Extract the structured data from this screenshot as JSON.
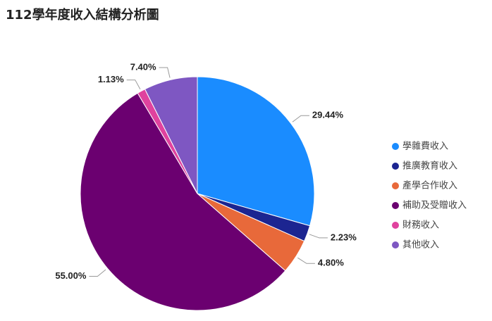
{
  "chart_data": {
    "type": "pie",
    "title": "112學年度收入結構分析圖",
    "categories": [
      "學雜費收入",
      "推廣教育收入",
      "產學合作收入",
      "補助及受贈收入",
      "財務收入",
      "其他收入"
    ],
    "values": [
      29.44,
      2.23,
      4.8,
      55.0,
      1.13,
      7.4
    ],
    "value_labels": [
      "29.44%",
      "2.23%",
      "4.80%",
      "55.00%",
      "1.13%",
      "7.40%"
    ],
    "colors": [
      "#1a8cff",
      "#1c2591",
      "#e8693a",
      "#6b0070",
      "#e0429e",
      "#7e57c2"
    ],
    "legend": "right"
  }
}
